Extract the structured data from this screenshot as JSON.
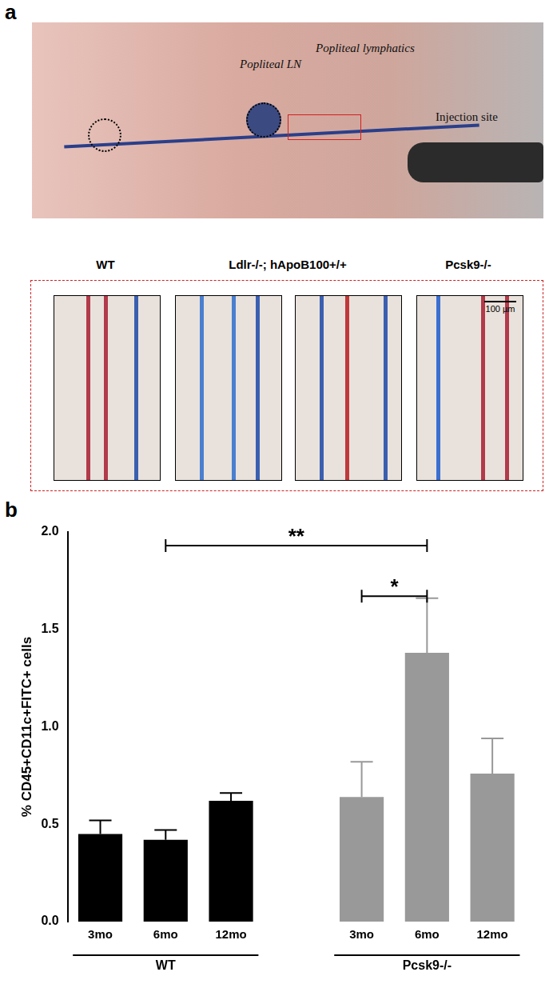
{
  "panel_a": {
    "panel_label": "a",
    "annotations": [
      "Popliteal LN",
      "Popliteal lymphatics",
      "Injection site"
    ],
    "image_titles": [
      "WT",
      "Ldlr-/-; hApoB100+/+",
      "Pcsk9-/-"
    ],
    "scale_bar": "100 µm"
  },
  "chart_data": {
    "type": "bar",
    "panel_label": "b",
    "y_label": "% CD45+CD11c+FITC+ cells",
    "categories": [
      "3mo",
      "6mo",
      "12mo",
      null,
      "3mo",
      "6mo",
      "12mo"
    ],
    "series": [
      {
        "name": "WT",
        "color": "#000000",
        "values": [
          0.45,
          0.42,
          0.62,
          null,
          null,
          null,
          null
        ],
        "errors": [
          0.07,
          0.05,
          0.04,
          null,
          null,
          null,
          null
        ]
      },
      {
        "name": "Pcsk9-/-",
        "color": "#999999",
        "values": [
          null,
          null,
          null,
          null,
          0.64,
          1.38,
          0.76
        ],
        "errors": [
          null,
          null,
          null,
          null,
          0.18,
          0.28,
          0.18
        ]
      }
    ],
    "groups": [
      {
        "label": "WT",
        "from": 0,
        "to": 2
      },
      {
        "label": "Pcsk9-/-",
        "from": 4,
        "to": 6
      }
    ],
    "significance": [
      {
        "text": "**",
        "from": 1,
        "to": 5,
        "y": 1.93
      },
      {
        "text": "*",
        "from": 4,
        "to": 5,
        "y": 1.67
      }
    ],
    "ylim": [
      0,
      2.0
    ],
    "yticks": [
      {
        "value": 0,
        "label": "0.0"
      },
      {
        "value": 0.5,
        "label": "0.5"
      },
      {
        "value": 1.0,
        "label": "1.0"
      },
      {
        "value": 1.5,
        "label": "1.5"
      },
      {
        "value": 2.0,
        "label": "2.0"
      }
    ],
    "grid": false
  }
}
